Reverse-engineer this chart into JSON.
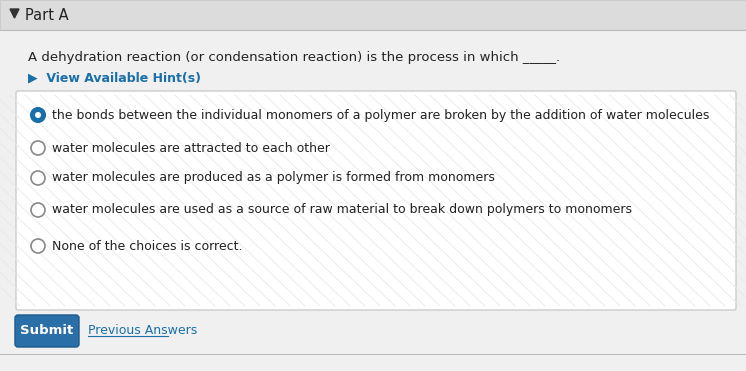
{
  "bg_color": "#e8e8e8",
  "panel_bg": "#f0f0f0",
  "box_bg": "#ffffff",
  "part_label": "Part A",
  "triangle_color": "#333333",
  "question_text": "A dehydration reaction (or condensation reaction) is the process in which _____.",
  "hint_text": "▶  View Available Hint(s)",
  "hint_color": "#1a6fa8",
  "options": [
    "the bonds between the individual monomers of a polymer are broken by the addition of water molecules",
    "water molecules are attracted to each other",
    "water molecules are produced as a polymer is formed from monomers",
    "water molecules are used as a source of raw material to break down polymers to monomers",
    "None of the choices is correct."
  ],
  "selected_index": 0,
  "selected_fill": "#1a6fa8",
  "unselected_fill": "#ffffff",
  "radio_border": "#888888",
  "radio_selected_border": "#1a6fa8",
  "text_color": "#222222",
  "submit_bg": "#2a6fa8",
  "submit_text_color": "#ffffff",
  "submit_label": "Submit",
  "prev_answers_label": "Previous Answers",
  "prev_answers_color": "#1a6fa8",
  "font_size_question": 9.5,
  "font_size_options": 9.0,
  "font_size_part": 10.5,
  "font_size_hint": 9.0,
  "font_size_submit": 9.5
}
